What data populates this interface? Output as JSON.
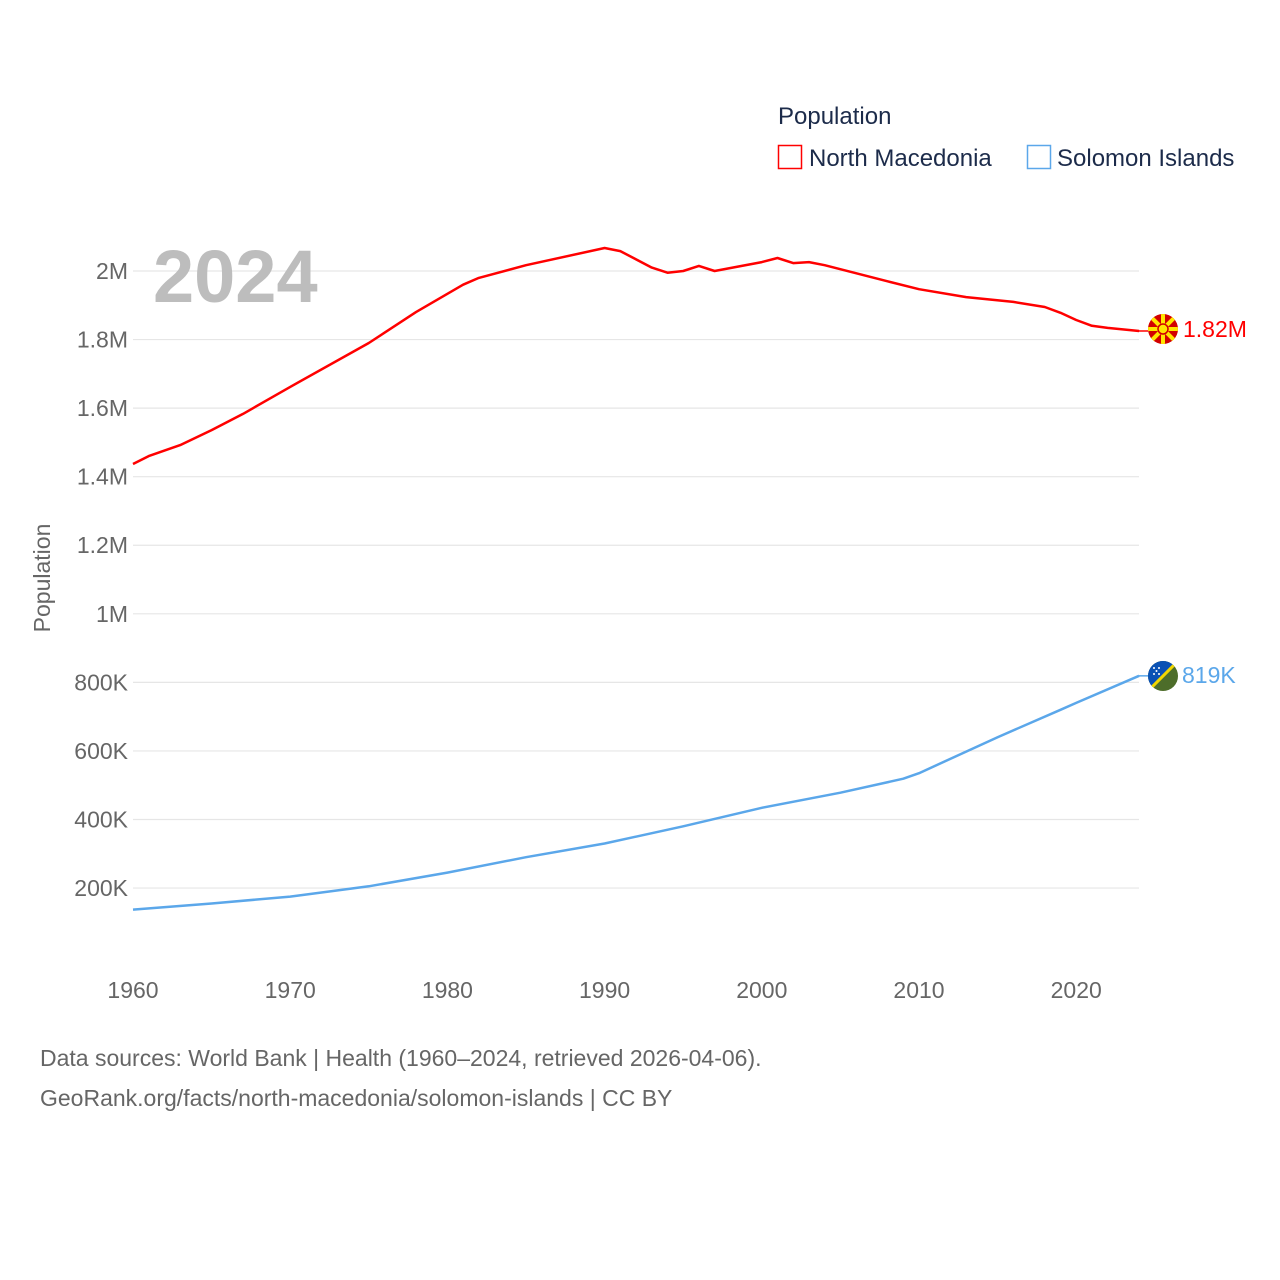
{
  "chart_data": {
    "type": "line",
    "title": "",
    "year_label": "2024",
    "ylabel": "Population",
    "xlabel": "",
    "legend_title": "Population",
    "legend_position": "top-right",
    "grid": true,
    "xlim": [
      1960,
      2024
    ],
    "ylim": [
      0,
      2100000
    ],
    "x_ticks": [
      1960,
      1970,
      1980,
      1990,
      2000,
      2010,
      2020
    ],
    "y_ticks": [
      {
        "value": 200000,
        "label": "200K"
      },
      {
        "value": 400000,
        "label": "400K"
      },
      {
        "value": 600000,
        "label": "600K"
      },
      {
        "value": 800000,
        "label": "800K"
      },
      {
        "value": 1000000,
        "label": "1M"
      },
      {
        "value": 1200000,
        "label": "1.2M"
      },
      {
        "value": 1400000,
        "label": "1.4M"
      },
      {
        "value": 1600000,
        "label": "1.6M"
      },
      {
        "value": 1800000,
        "label": "1.8M"
      },
      {
        "value": 2000000,
        "label": "2M"
      }
    ],
    "series": [
      {
        "name": "North Macedonia",
        "color": "#ff0000",
        "end_label": "1.82M",
        "x": [
          1960,
          1961,
          1963,
          1965,
          1967,
          1970,
          1975,
          1978,
          1981,
          1982,
          1985,
          1990,
          1991,
          1993,
          1994,
          1995,
          1996,
          1997,
          2000,
          2001,
          2002,
          2003,
          2004,
          2008,
          2010,
          2013,
          2016,
          2018,
          2019,
          2020,
          2021,
          2022,
          2024
        ],
        "values": [
          1437000,
          1460000,
          1492000,
          1536000,
          1583000,
          1662000,
          1790000,
          1880000,
          1960000,
          1980000,
          2017000,
          2067000,
          2058000,
          2010000,
          1995000,
          2000000,
          2015000,
          2000000,
          2026000,
          2038000,
          2023000,
          2026000,
          2017000,
          1970000,
          1947000,
          1924000,
          1910000,
          1895000,
          1878000,
          1857000,
          1840000,
          1834000,
          1825000
        ]
      },
      {
        "name": "Solomon Islands",
        "color": "#5ba7ea",
        "end_label": "819K",
        "x": [
          1960,
          1965,
          1970,
          1975,
          1980,
          1985,
          1990,
          1995,
          2000,
          2005,
          2009,
          2010,
          2015,
          2019,
          2020,
          2024
        ],
        "values": [
          137000,
          155000,
          175000,
          205000,
          245000,
          290000,
          330000,
          380000,
          434000,
          478000,
          519000,
          535000,
          640000,
          720000,
          740000,
          819000
        ]
      }
    ]
  },
  "footer": {
    "line1": "Data sources: World Bank | Health (1960–2024, retrieved 2026-04-06).",
    "line2": "GeoRank.org/facts/north-macedonia/solomon-islands | CC BY"
  }
}
